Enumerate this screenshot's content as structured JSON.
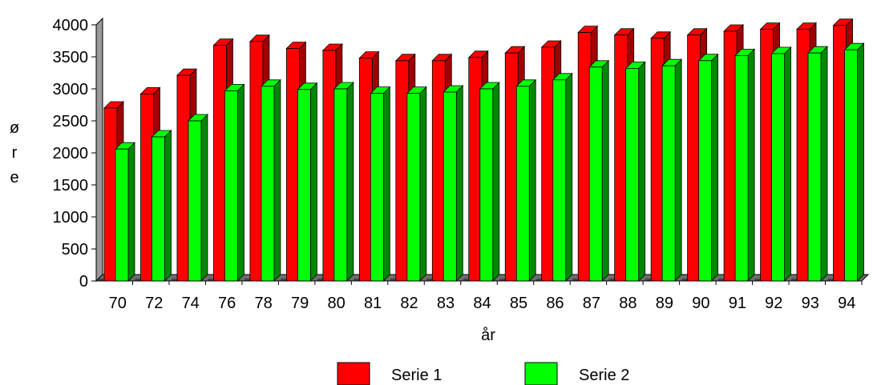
{
  "chart_data": {
    "type": "bar",
    "style": "3d-clustered",
    "categories": [
      "70",
      "72",
      "74",
      "76",
      "78",
      "79",
      "80",
      "81",
      "82",
      "83",
      "84",
      "85",
      "86",
      "87",
      "88",
      "89",
      "90",
      "91",
      "92",
      "93",
      "94"
    ],
    "series": [
      {
        "name": "Serie 1",
        "color": "#ff0000",
        "dark": "#a00000",
        "values": [
          2700,
          2920,
          3210,
          3680,
          3740,
          3630,
          3600,
          3480,
          3440,
          3440,
          3490,
          3560,
          3650,
          3880,
          3840,
          3790,
          3840,
          3900,
          3930,
          3930,
          3990
        ]
      },
      {
        "name": "Serie 2",
        "color": "#00ff00",
        "dark": "#008800",
        "values": [
          2060,
          2250,
          2500,
          2970,
          3040,
          2990,
          3000,
          2930,
          2930,
          2950,
          3000,
          3040,
          3140,
          3340,
          3320,
          3360,
          3440,
          3520,
          3550,
          3560,
          3610
        ]
      }
    ],
    "yticks": [
      0,
      500,
      1000,
      1500,
      2000,
      2500,
      3000,
      3500,
      4000
    ],
    "ylim": [
      0,
      4000
    ],
    "xlabel": "år",
    "ylabel_letters": [
      "ø",
      "r",
      "e"
    ],
    "legend_position": "bottom"
  }
}
